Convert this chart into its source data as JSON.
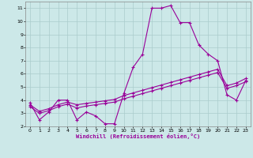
{
  "xlabel": "Windchill (Refroidissement éolien,°C)",
  "bg_color": "#cce8e8",
  "grid_color": "#aacccc",
  "line_color": "#990099",
  "xlim": [
    -0.5,
    23.5
  ],
  "ylim": [
    2,
    11.5
  ],
  "xticks": [
    0,
    1,
    2,
    3,
    4,
    5,
    6,
    7,
    8,
    9,
    10,
    11,
    12,
    13,
    14,
    15,
    16,
    17,
    18,
    19,
    20,
    21,
    22,
    23
  ],
  "yticks": [
    2,
    3,
    4,
    5,
    6,
    7,
    8,
    9,
    10,
    11
  ],
  "line1_x": [
    0,
    1,
    2,
    3,
    4,
    5,
    6,
    7,
    8,
    9,
    10,
    11,
    12,
    13,
    14,
    15,
    16,
    17,
    18,
    19,
    20,
    21,
    22,
    23
  ],
  "line1_y": [
    3.8,
    2.5,
    3.1,
    4.0,
    4.0,
    2.5,
    3.1,
    2.8,
    2.2,
    2.2,
    4.5,
    6.5,
    7.5,
    11.0,
    11.0,
    11.2,
    9.9,
    9.9,
    8.2,
    7.5,
    7.0,
    4.4,
    4.0,
    5.5
  ],
  "line2_x": [
    0,
    1,
    2,
    3,
    4,
    5,
    6,
    7,
    8,
    9,
    10,
    11,
    12,
    13,
    14,
    15,
    16,
    17,
    18,
    19,
    20,
    21,
    22,
    23
  ],
  "line2_y": [
    3.5,
    3.0,
    3.2,
    3.5,
    3.7,
    3.4,
    3.55,
    3.65,
    3.75,
    3.85,
    4.1,
    4.3,
    4.5,
    4.7,
    4.9,
    5.1,
    5.3,
    5.5,
    5.7,
    5.9,
    6.1,
    4.9,
    5.1,
    5.4
  ],
  "line3_x": [
    0,
    1,
    2,
    3,
    4,
    5,
    6,
    7,
    8,
    9,
    10,
    11,
    12,
    13,
    14,
    15,
    16,
    17,
    18,
    19,
    20,
    21,
    22,
    23
  ],
  "line3_y": [
    3.65,
    3.15,
    3.35,
    3.65,
    3.85,
    3.65,
    3.75,
    3.85,
    3.95,
    4.05,
    4.35,
    4.55,
    4.75,
    4.95,
    5.15,
    5.35,
    5.55,
    5.75,
    5.95,
    6.15,
    6.35,
    5.1,
    5.3,
    5.65
  ]
}
